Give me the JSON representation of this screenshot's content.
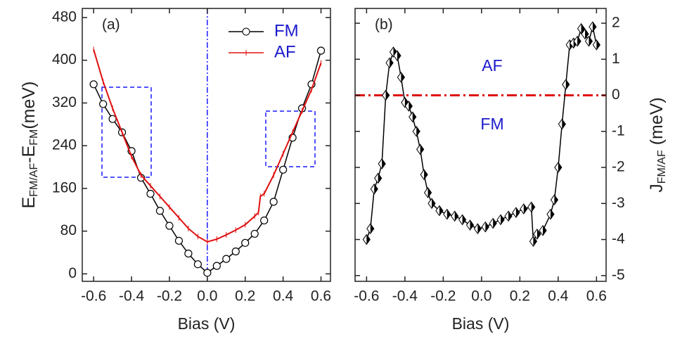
{
  "chart_data": [
    {
      "type": "line",
      "panel_label": "(a)",
      "xlabel": "Bias (V)",
      "ylabel": [
        "E",
        "FM/AF",
        "-E",
        "FM",
        "(meV)"
      ],
      "xlim": [
        -0.66,
        0.65
      ],
      "ylim": [
        -14,
        497
      ],
      "xticks": [
        -0.6,
        -0.4,
        -0.2,
        {
          "value": 0,
          "label": "0.0"
        },
        0.2,
        0.4,
        0.6
      ],
      "yticks": [
        0,
        80,
        160,
        240,
        320,
        400,
        480
      ],
      "y_side": "left",
      "vline_x": 0,
      "legend": "upper center",
      "series": [
        {
          "name": "FM",
          "color": "#000000",
          "marker": "circle",
          "x": [
            -0.6,
            -0.55,
            -0.5,
            -0.45,
            -0.4,
            -0.35,
            -0.3,
            -0.25,
            -0.2,
            -0.15,
            -0.1,
            -0.05,
            0,
            0.05,
            0.1,
            0.15,
            0.2,
            0.25,
            0.3,
            0.35,
            0.4,
            0.45,
            0.5,
            0.55,
            0.6
          ],
          "values": [
            355,
            318,
            290,
            265,
            230,
            180,
            150,
            118,
            90,
            62,
            38,
            18,
            2,
            15,
            28,
            42,
            58,
            75,
            100,
            135,
            195,
            255,
            310,
            355,
            418
          ]
        },
        {
          "name": "AF",
          "color": "#e01010",
          "marker": "plus",
          "x": [
            -0.6,
            -0.55,
            -0.5,
            -0.45,
            -0.4,
            -0.35,
            -0.3,
            -0.25,
            -0.2,
            -0.15,
            -0.1,
            -0.05,
            0,
            0.05,
            0.1,
            0.15,
            0.2,
            0.25,
            0.27,
            0.28,
            0.3,
            0.35,
            0.4,
            0.45,
            0.5,
            0.55,
            0.6
          ],
          "values": [
            420,
            360,
            310,
            265,
            220,
            185,
            165,
            145,
            125,
            105,
            85,
            70,
            60,
            65,
            73,
            82,
            92,
            108,
            115,
            145,
            150,
            185,
            225,
            265,
            305,
            345,
            395
          ]
        }
      ]
    },
    {
      "type": "line",
      "panel_label": "(b)",
      "xlabel": "Bias (V)",
      "ylabel": [
        "J",
        "FM/AF",
        " (meV)"
      ],
      "xlim": [
        -0.66,
        0.65
      ],
      "ylim": [
        -5.16,
        2.41
      ],
      "xticks": [
        -0.6,
        -0.4,
        -0.2,
        {
          "value": 0,
          "label": "0.0"
        },
        0.2,
        0.4,
        0.6
      ],
      "yticks": [
        -5,
        -4,
        -3,
        -2,
        -1,
        0,
        1,
        2
      ],
      "y_side": "right",
      "hline_y": 0,
      "annotations": [
        "AF",
        "FM"
      ],
      "series": [
        {
          "name": "J",
          "color": "#000000",
          "marker": "half-diamond",
          "x": [
            -0.6,
            -0.58,
            -0.56,
            -0.54,
            -0.52,
            -0.5,
            -0.48,
            -0.46,
            -0.44,
            -0.42,
            -0.4,
            -0.38,
            -0.36,
            -0.34,
            -0.32,
            -0.3,
            -0.28,
            -0.26,
            -0.22,
            -0.18,
            -0.14,
            -0.1,
            -0.06,
            -0.02,
            0.02,
            0.06,
            0.1,
            0.14,
            0.18,
            0.22,
            0.26,
            0.27,
            0.29,
            0.32,
            0.36,
            0.38,
            0.4,
            0.42,
            0.44,
            0.46,
            0.48,
            0.5,
            0.52,
            0.54,
            0.56,
            0.58,
            0.6
          ],
          "values": [
            -4.0,
            -3.7,
            -2.6,
            -2.3,
            -1.9,
            0.0,
            0.9,
            1.2,
            1.1,
            0.5,
            -0.2,
            -0.3,
            -0.6,
            -1.0,
            -1.5,
            -2.2,
            -2.7,
            -3.0,
            -3.2,
            -3.3,
            -3.35,
            -3.45,
            -3.6,
            -3.7,
            -3.65,
            -3.55,
            -3.45,
            -3.35,
            -3.25,
            -3.15,
            -3.1,
            -4.05,
            -3.85,
            -3.75,
            -3.3,
            -2.9,
            -2.0,
            -0.8,
            0.3,
            1.4,
            1.45,
            1.5,
            1.85,
            1.7,
            1.5,
            1.9,
            1.4
          ]
        }
      ]
    }
  ]
}
